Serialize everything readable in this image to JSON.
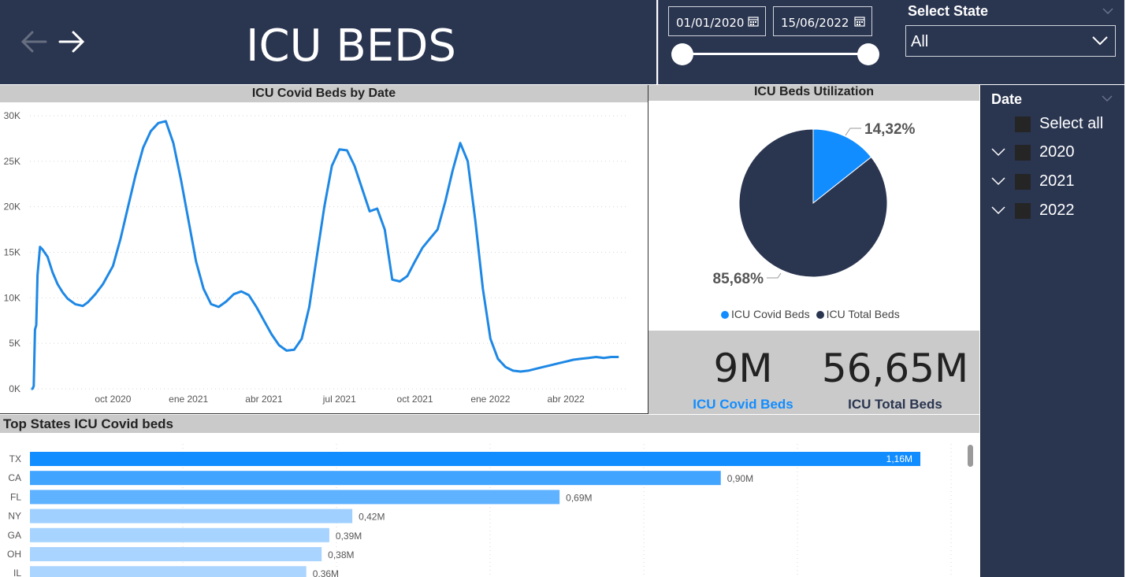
{
  "header": {
    "title": "ICU BEDS",
    "back_icon": "arrow-left-icon",
    "forward_icon": "arrow-right-icon"
  },
  "filters": {
    "date_start": "01/01/2020",
    "date_end": "15/06/2022",
    "state_label": "Select State",
    "state_value": "All"
  },
  "line_chart": {
    "title": "ICU Covid Beds by Date",
    "line_color": "#1e88e5"
  },
  "pie_chart": {
    "title": "ICU Beds Utilization",
    "label_covid": "14,32%",
    "label_total": "85,68%",
    "legend": [
      {
        "name": "ICU Covid Beds",
        "color": "#118dff"
      },
      {
        "name": "ICU Total Beds",
        "color": "#2a3550"
      }
    ]
  },
  "kpis": {
    "covid_value": "9M",
    "covid_label": "ICU Covid Beds",
    "covid_color": "#118dff",
    "total_value": "56,65M",
    "total_label": "ICU Total Beds",
    "total_color": "#2a3550"
  },
  "bar_chart": {
    "title": "Top States ICU Covid beds"
  },
  "date_slicer": {
    "title": "Date",
    "items": [
      "Select all",
      "2020",
      "2021",
      "2022"
    ]
  },
  "chart_data": [
    {
      "type": "line",
      "title": "ICU Covid Beds by Date",
      "xlabel": "",
      "ylabel": "",
      "x_ticks": [
        "oct 2020",
        "ene 2021",
        "abr 2021",
        "jul 2021",
        "oct 2021",
        "ene 2022",
        "abr 2022"
      ],
      "y_ticks": [
        "0K",
        "5K",
        "10K",
        "15K",
        "20K",
        "25K",
        "30K"
      ],
      "ylim": [
        0,
        30000
      ],
      "x_unit": "months since 2020-07-01",
      "series": [
        {
          "x": [
            -0.25,
            -0.2,
            -0.15,
            -0.1,
            -0.05,
            0,
            0.1,
            0.2,
            0.4,
            0.6,
            0.8,
            1.0,
            1.2,
            1.5,
            1.8,
            2.0,
            2.3,
            2.6,
            3.0,
            3.3,
            3.6,
            3.9,
            4.2,
            4.5,
            4.8,
            5.1,
            5.4,
            5.7,
            6.0,
            6.3,
            6.6,
            6.9,
            7.2,
            7.5,
            7.8,
            8.1,
            8.4,
            8.7,
            9.0,
            9.3,
            9.6,
            9.9,
            10.2,
            10.5,
            10.8,
            11.1,
            11.4,
            11.7,
            12.0,
            12.3,
            12.6,
            12.9,
            13.2,
            13.5,
            13.8,
            14.1,
            14.4,
            14.7,
            15.0,
            15.3,
            15.6,
            15.9,
            16.2,
            16.5,
            16.8,
            17.1,
            17.4,
            17.7,
            18.0,
            18.3,
            18.6,
            18.9,
            19.2,
            19.5,
            19.8,
            20.1,
            20.4,
            20.7,
            21.0,
            21.3,
            21.6,
            21.9,
            22.2,
            22.5,
            22.8,
            23.1
          ],
          "y": [
            0,
            0,
            300,
            6500,
            7000,
            12500,
            15600,
            15300,
            14500,
            12800,
            11500,
            10600,
            9900,
            9300,
            9100,
            9500,
            10400,
            11500,
            13500,
            16500,
            20000,
            23500,
            26500,
            28300,
            29200,
            29400,
            27000,
            23000,
            18500,
            14000,
            11000,
            9300,
            9000,
            9600,
            10400,
            10700,
            10300,
            9000,
            7500,
            6000,
            4800,
            4200,
            4300,
            5500,
            9000,
            14500,
            20000,
            24500,
            26300,
            26200,
            24500,
            22000,
            19500,
            19800,
            17500,
            12000,
            11800,
            12400,
            14000,
            15500,
            16500,
            17500,
            20500,
            24000,
            27000,
            25000,
            18500,
            11000,
            5500,
            3300,
            2400,
            2000,
            1900,
            2000,
            2200,
            2400,
            2600,
            2800,
            3000,
            3200,
            3300,
            3400,
            3500,
            3400,
            3500,
            3500
          ]
        }
      ]
    },
    {
      "type": "pie",
      "title": "ICU Beds Utilization",
      "categories": [
        "ICU Covid Beds",
        "ICU Total Beds"
      ],
      "values": [
        14.32,
        85.68
      ],
      "unit": "%",
      "legend_position": "bottom"
    },
    {
      "type": "bar",
      "orientation": "horizontal",
      "title": "Top States ICU Covid beds",
      "categories": [
        "TX",
        "CA",
        "FL",
        "NY",
        "GA",
        "OH",
        "IL"
      ],
      "values": [
        1.16,
        0.9,
        0.69,
        0.42,
        0.39,
        0.38,
        0.36
      ],
      "labels": [
        "1,16M",
        "0,90M",
        "0,69M",
        "0,42M",
        "0,39M",
        "0,38M",
        "0,36M"
      ],
      "unit": "M",
      "colors": [
        "#118dff",
        "#41a4ff",
        "#5fb2ff",
        "#9fd0ff",
        "#a6d3ff",
        "#a9d4ff",
        "#abd5ff"
      ]
    }
  ]
}
